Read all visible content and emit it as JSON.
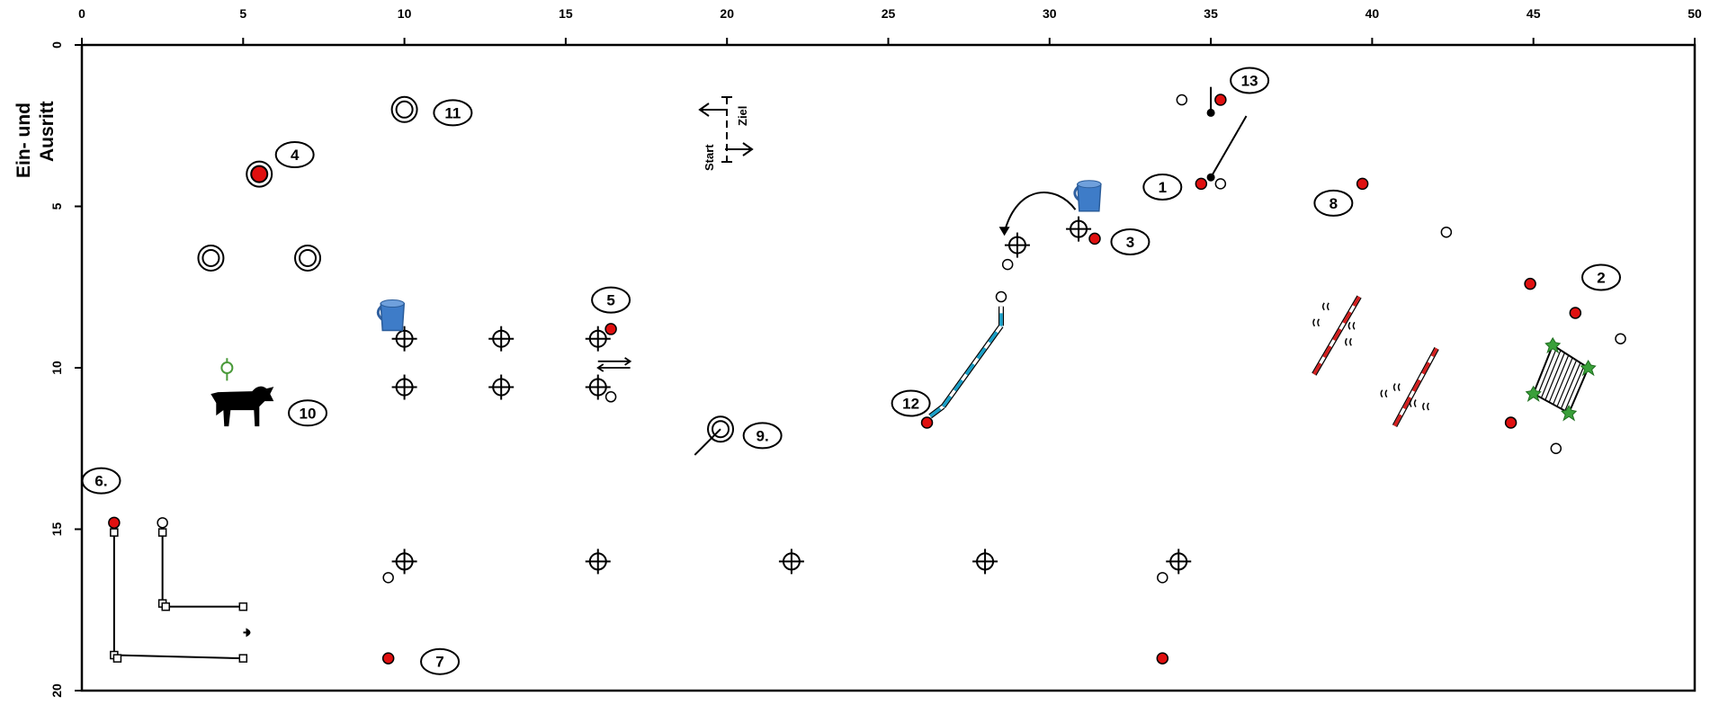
{
  "axes": {
    "x_ticks": [
      "0",
      "5",
      "10",
      "15",
      "20",
      "25",
      "30",
      "35",
      "40",
      "45",
      "50"
    ],
    "y_ticks": [
      "0",
      "5",
      "10",
      "15",
      "20"
    ],
    "xlim": [
      0,
      50
    ],
    "ylim": [
      0,
      20
    ],
    "side_label_line1": "Ein- und",
    "side_label_line2": "Ausritt"
  },
  "direction_marker": {
    "start_label": "Start",
    "finish_label": "Ziel"
  },
  "obstacle_labels": [
    {
      "text": "1",
      "x": 33.5,
      "y": 4.4
    },
    {
      "text": "2",
      "x": 47.1,
      "y": 7.2
    },
    {
      "text": "3",
      "x": 32.5,
      "y": 6.1
    },
    {
      "text": "4",
      "x": 6.6,
      "y": 3.4
    },
    {
      "text": "5",
      "x": 16.4,
      "y": 7.9
    },
    {
      "text": "6.",
      "x": 0.6,
      "y": 13.5
    },
    {
      "text": "7",
      "x": 11.1,
      "y": 19.1
    },
    {
      "text": "8",
      "x": 38.8,
      "y": 4.9
    },
    {
      "text": "9.",
      "x": 21.1,
      "y": 12.1
    },
    {
      "text": "10",
      "x": 7.0,
      "y": 11.4
    },
    {
      "text": "11",
      "x": 11.5,
      "y": 2.1
    },
    {
      "text": "12",
      "x": 25.7,
      "y": 11.1
    },
    {
      "text": "13",
      "x": 36.2,
      "y": 1.1
    }
  ],
  "colors": {
    "red_marker": "#e01010",
    "pole_red": "#d42020",
    "pole_blue": "#1aa0c8",
    "bucket_blue": "#3e7cc8",
    "plant_green": "#3aa03a",
    "ring_green": "#4a9a3a",
    "ink": "#000000"
  },
  "icons": {
    "bucket": "bucket-icon",
    "bull": "bull-icon",
    "bell": "bell-icon",
    "plant": "plant-icon"
  }
}
